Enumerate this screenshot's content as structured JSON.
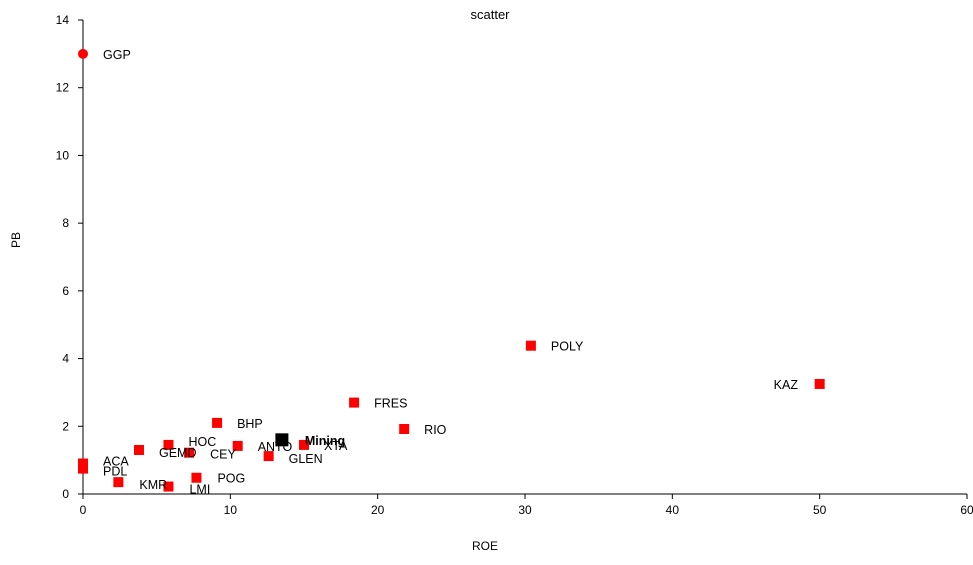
{
  "chart_data": {
    "type": "scatter",
    "title": "scatter",
    "xlabel": "ROE",
    "ylabel": "PB",
    "xlim": [
      0,
      60
    ],
    "ylim": [
      0,
      14
    ],
    "xticks": [
      0,
      10,
      20,
      30,
      40,
      50,
      60
    ],
    "yticks": [
      0,
      2,
      4,
      6,
      8,
      10,
      12,
      14
    ],
    "grid": false,
    "colors": {
      "marker": "#ff0000",
      "highlight": "#000000",
      "axis": "#000000"
    },
    "points": [
      {
        "label": "GGP",
        "x": 0.0,
        "y": 13.0,
        "marker": "circle"
      },
      {
        "label": "ACA",
        "x": 0.0,
        "y": 0.9,
        "marker": "square"
      },
      {
        "label": "PDL",
        "x": 0.0,
        "y": 0.75,
        "marker": "square"
      },
      {
        "label": "KMR",
        "x": 2.4,
        "y": 0.35,
        "marker": "square"
      },
      {
        "label": "GEMD",
        "x": 3.8,
        "y": 1.3,
        "marker": "square"
      },
      {
        "label": "LMI",
        "x": 5.8,
        "y": 0.22,
        "marker": "square"
      },
      {
        "label": "HOC",
        "x": 5.8,
        "y": 1.45,
        "marker": "square"
      },
      {
        "label": "CEY",
        "x": 7.2,
        "y": 1.22,
        "marker": "square"
      },
      {
        "label": "POG",
        "x": 7.7,
        "y": 0.48,
        "marker": "square"
      },
      {
        "label": "BHP",
        "x": 9.1,
        "y": 2.1,
        "marker": "square"
      },
      {
        "label": "ANTO",
        "x": 10.5,
        "y": 1.42,
        "marker": "square"
      },
      {
        "label": "GLEN",
        "x": 12.6,
        "y": 1.12,
        "marker": "square"
      },
      {
        "label": "Mining",
        "x": 13.5,
        "y": 1.6,
        "marker": "square",
        "highlight": true
      },
      {
        "label": "XTA",
        "x": 15.0,
        "y": 1.45,
        "marker": "square"
      },
      {
        "label": "FRES",
        "x": 18.4,
        "y": 2.7,
        "marker": "square"
      },
      {
        "label": "RIO",
        "x": 21.8,
        "y": 1.92,
        "marker": "square"
      },
      {
        "label": "POLY",
        "x": 30.4,
        "y": 4.38,
        "marker": "square"
      },
      {
        "label": "KAZ",
        "x": 50.0,
        "y": 3.25,
        "marker": "square"
      }
    ]
  }
}
